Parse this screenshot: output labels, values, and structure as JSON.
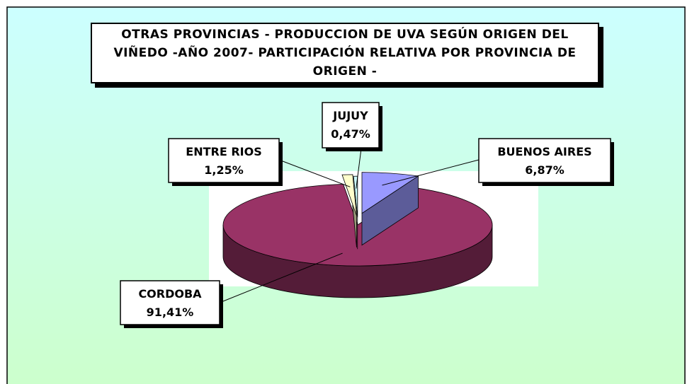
{
  "chart_data": {
    "type": "pie",
    "title": "OTRAS PROVINCIAS - PRODUCCION DE UVA SEGÚN ORIGEN DEL VIÑEDO -AÑO 2007-  PARTICIPACIÓN RELATIVA POR PROVINCIA DE ORIGEN -",
    "categories": [
      "BUENOS AIRES",
      "CORDOBA",
      "ENTRE RIOS",
      "JUJUY"
    ],
    "values": [
      6.87,
      91.41,
      1.25,
      0.47
    ],
    "value_labels": [
      "6,87%",
      "91,41%",
      "1,25%",
      "0,47%"
    ],
    "colors": [
      "#9999ff",
      "#993366",
      "#ffffcc",
      "#ccffff"
    ]
  }
}
